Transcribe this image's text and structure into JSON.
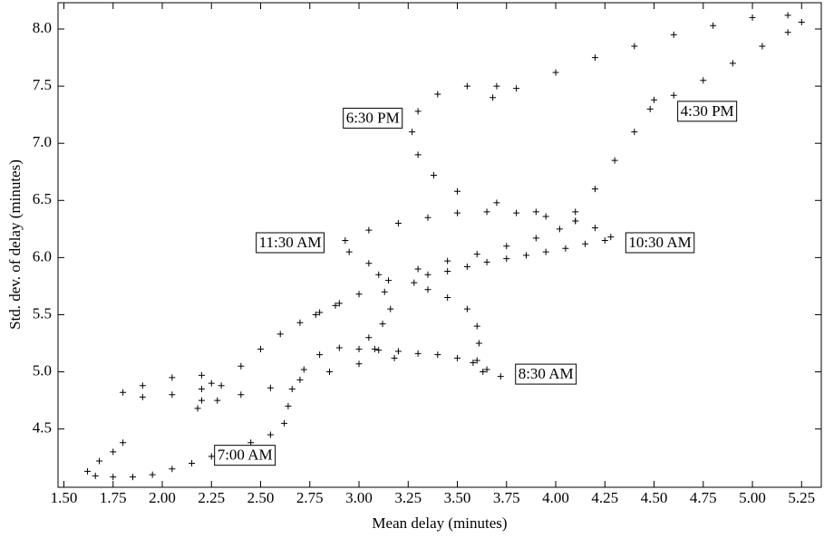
{
  "chart_data": {
    "type": "scatter",
    "marker": "+",
    "color": "#000000",
    "x_label": "Mean delay (minutes)",
    "y_label": "Std. dev. of delay (minutes)",
    "xlim": [
      1.47,
      5.35
    ],
    "ylim": [
      3.99,
      8.23
    ],
    "xticks": [
      {
        "value": 1.5,
        "label": "1.50"
      },
      {
        "value": 1.75,
        "label": "1.75"
      },
      {
        "value": 2.0,
        "label": "2.00"
      },
      {
        "value": 2.25,
        "label": "2.25"
      },
      {
        "value": 2.5,
        "label": "2.50"
      },
      {
        "value": 2.75,
        "label": "2.75"
      },
      {
        "value": 3.0,
        "label": "3.00"
      },
      {
        "value": 3.25,
        "label": "3.25"
      },
      {
        "value": 3.5,
        "label": "3.50"
      },
      {
        "value": 3.75,
        "label": "3.75"
      },
      {
        "value": 4.0,
        "label": "4.00"
      },
      {
        "value": 4.25,
        "label": "4.25"
      },
      {
        "value": 4.5,
        "label": "4.50"
      },
      {
        "value": 4.75,
        "label": "4.75"
      },
      {
        "value": 5.0,
        "label": "5.00"
      },
      {
        "value": 5.25,
        "label": "5.25"
      }
    ],
    "yticks": [
      4.5,
      {
        "value": 5.0,
        "label": "5.0"
      },
      5.5,
      {
        "value": 6.0,
        "label": "6.0"
      },
      6.5,
      {
        "value": 7.0,
        "label": "7.0"
      },
      7.5,
      {
        "value": 8.0,
        "label": "8.0"
      }
    ],
    "x": [
      1.8,
      1.75,
      1.68,
      1.62,
      1.66,
      1.75,
      1.85,
      1.95,
      2.05,
      2.15,
      2.25,
      2.35,
      2.45,
      2.55,
      2.62,
      2.64,
      2.66,
      2.72,
      2.8,
      2.9,
      3.0,
      3.1,
      3.2,
      3.3,
      3.4,
      3.5,
      3.58,
      3.65,
      3.72,
      3.63,
      3.6,
      3.61,
      3.6,
      3.55,
      3.45,
      3.35,
      3.28,
      3.35,
      3.45,
      3.55,
      3.65,
      3.75,
      3.85,
      3.95,
      4.05,
      4.15,
      4.25,
      4.28,
      4.2,
      4.1,
      3.95,
      3.8,
      3.65,
      3.5,
      3.35,
      3.2,
      3.05,
      2.93,
      2.95,
      3.05,
      3.1,
      3.13,
      3.16,
      3.12,
      3.05,
      3.08,
      3.18,
      3.0,
      2.85,
      2.7,
      2.55,
      2.4,
      2.28,
      2.18,
      2.2,
      2.25,
      2.2,
      2.05,
      1.9,
      1.8,
      1.9,
      2.05,
      2.2,
      2.3,
      2.4,
      2.5,
      2.6,
      2.7,
      2.78,
      2.88,
      2.8,
      2.9,
      3.0,
      3.15,
      3.3,
      3.45,
      3.6,
      3.75,
      3.9,
      4.02,
      4.1,
      4.2,
      4.3,
      4.4,
      4.48,
      4.5,
      4.6,
      4.75,
      4.9,
      5.05,
      5.18,
      5.25,
      5.18,
      5.0,
      4.8,
      4.6,
      4.4,
      4.2,
      4.0,
      3.8,
      3.68,
      3.7,
      3.55,
      3.4,
      3.3,
      3.27,
      3.3,
      3.38,
      3.5,
      3.7,
      3.9,
      4.1
    ],
    "y": [
      4.38,
      4.3,
      4.22,
      4.13,
      4.09,
      4.08,
      4.08,
      4.1,
      4.15,
      4.2,
      4.26,
      4.32,
      4.38,
      4.45,
      4.55,
      4.7,
      4.85,
      5.02,
      5.15,
      5.21,
      5.2,
      5.19,
      5.18,
      5.16,
      5.15,
      5.12,
      5.08,
      5.02,
      4.96,
      5.0,
      5.1,
      5.25,
      5.4,
      5.55,
      5.65,
      5.72,
      5.78,
      5.85,
      5.88,
      5.92,
      5.96,
      5.99,
      6.02,
      6.05,
      6.08,
      6.12,
      6.15,
      6.18,
      6.26,
      6.32,
      6.36,
      6.39,
      6.4,
      6.39,
      6.35,
      6.3,
      6.24,
      6.15,
      6.05,
      5.95,
      5.85,
      5.7,
      5.55,
      5.42,
      5.3,
      5.2,
      5.12,
      5.07,
      5.0,
      4.93,
      4.86,
      4.8,
      4.75,
      4.68,
      4.75,
      4.9,
      4.97,
      4.95,
      4.88,
      4.82,
      4.78,
      4.8,
      4.85,
      4.88,
      5.05,
      5.2,
      5.33,
      5.43,
      5.5,
      5.58,
      5.52,
      5.6,
      5.68,
      5.8,
      5.9,
      5.97,
      6.03,
      6.1,
      6.17,
      6.25,
      6.4,
      6.6,
      6.85,
      7.1,
      7.3,
      7.38,
      7.42,
      7.55,
      7.7,
      7.85,
      7.97,
      8.06,
      8.12,
      8.1,
      8.03,
      7.95,
      7.85,
      7.75,
      7.62,
      7.48,
      7.4,
      7.5,
      7.5,
      7.43,
      7.28,
      7.1,
      6.9,
      6.72,
      6.58,
      6.48,
      6.4,
      6.32
    ],
    "annotations": [
      {
        "text": "6:30 PM",
        "x": 3.07,
        "y": 7.22
      },
      {
        "text": "4:30 PM",
        "x": 4.77,
        "y": 7.28
      },
      {
        "text": "11:30 AM",
        "x": 2.65,
        "y": 6.13
      },
      {
        "text": "10:30 AM",
        "x": 4.53,
        "y": 6.13
      },
      {
        "text": "8:30 AM",
        "x": 3.95,
        "y": 4.98
      },
      {
        "text": "7:00 AM",
        "x": 2.42,
        "y": 4.27
      }
    ]
  }
}
